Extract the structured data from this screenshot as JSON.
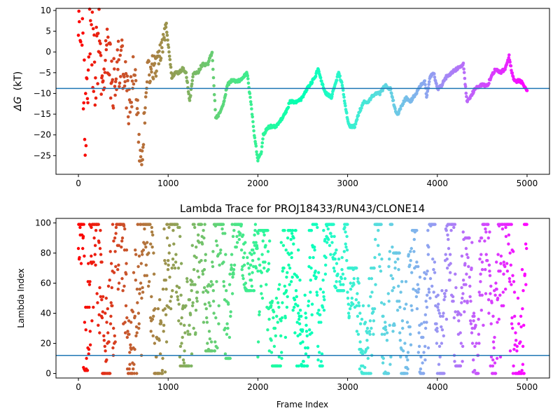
{
  "chart_data": [
    {
      "type": "scatter",
      "title": "",
      "xlabel": "",
      "ylabel": "ΔG (kT)",
      "ylabel_symbol": "ΔG",
      "ylabel_unit": "(kT)",
      "xlim": [
        -250,
        5250
      ],
      "ylim": [
        -29.5,
        10.5
      ],
      "xticks": [
        0,
        1000,
        2000,
        3000,
        4000,
        5000
      ],
      "yticks": [
        10,
        5,
        0,
        -5,
        -10,
        -15,
        -20,
        -25
      ],
      "ytick_labels": [
        "10",
        "5",
        "0",
        "−5",
        "−10",
        "−15",
        "−20",
        "−25"
      ],
      "hline": -8.8,
      "colormap": "rainbow (red at frame 0 → violet at frame 5000)",
      "keypoints": [
        [
          0,
          10
        ],
        [
          40,
          4
        ],
        [
          80,
          -18
        ],
        [
          130,
          8
        ],
        [
          180,
          -6
        ],
        [
          230,
          3
        ],
        [
          280,
          -12
        ],
        [
          330,
          2
        ],
        [
          380,
          -8
        ],
        [
          430,
          -4
        ],
        [
          500,
          -3
        ],
        [
          560,
          -14
        ],
        [
          620,
          -4
        ],
        [
          700,
          -28
        ],
        [
          760,
          -6
        ],
        [
          820,
          -4
        ],
        [
          880,
          -3
        ],
        [
          940,
          2
        ],
        [
          980,
          6
        ],
        [
          1000,
          2
        ],
        [
          1040,
          -6
        ],
        [
          1080,
          -5
        ],
        [
          1120,
          -5
        ],
        [
          1160,
          -4
        ],
        [
          1200,
          -5
        ],
        [
          1240,
          -12
        ],
        [
          1280,
          -5
        ],
        [
          1330,
          -5
        ],
        [
          1380,
          -3
        ],
        [
          1440,
          -3
        ],
        [
          1490,
          0
        ],
        [
          1530,
          -16
        ],
        [
          1570,
          -15
        ],
        [
          1610,
          -13
        ],
        [
          1660,
          -8
        ],
        [
          1700,
          -7
        ],
        [
          1800,
          -7
        ],
        [
          1840,
          -6
        ],
        [
          1880,
          -5
        ],
        [
          1920,
          -12
        ],
        [
          1960,
          -20
        ],
        [
          2000,
          -26
        ],
        [
          2040,
          -24
        ],
        [
          2060,
          -20
        ],
        [
          2120,
          -18
        ],
        [
          2200,
          -18
        ],
        [
          2300,
          -15
        ],
        [
          2360,
          -12
        ],
        [
          2450,
          -12
        ],
        [
          2500,
          -11
        ],
        [
          2540,
          -9
        ],
        [
          2580,
          -8
        ],
        [
          2640,
          -6
        ],
        [
          2670,
          -4
        ],
        [
          2720,
          -8
        ],
        [
          2760,
          -10
        ],
        [
          2820,
          -11
        ],
        [
          2860,
          -8
        ],
        [
          2900,
          -5
        ],
        [
          2940,
          -8
        ],
        [
          2980,
          -14
        ],
        [
          3020,
          -18
        ],
        [
          3080,
          -18
        ],
        [
          3120,
          -15
        ],
        [
          3180,
          -12
        ],
        [
          3230,
          -12
        ],
        [
          3300,
          -10
        ],
        [
          3360,
          -10
        ],
        [
          3420,
          -8
        ],
        [
          3480,
          -9
        ],
        [
          3530,
          -14
        ],
        [
          3560,
          -15
        ],
        [
          3600,
          -13
        ],
        [
          3650,
          -11
        ],
        [
          3700,
          -12
        ],
        [
          3760,
          -10
        ],
        [
          3820,
          -8
        ],
        [
          3860,
          -7
        ],
        [
          3880,
          -11
        ],
        [
          3920,
          -6
        ],
        [
          3960,
          -5
        ],
        [
          4000,
          -9
        ],
        [
          4050,
          -8
        ],
        [
          4100,
          -6
        ],
        [
          4160,
          -5
        ],
        [
          4220,
          -4
        ],
        [
          4290,
          -3
        ],
        [
          4330,
          -12
        ],
        [
          4360,
          -11
        ],
        [
          4420,
          -9
        ],
        [
          4480,
          -8
        ],
        [
          4560,
          -8
        ],
        [
          4600,
          -6
        ],
        [
          4650,
          -4
        ],
        [
          4700,
          -5
        ],
        [
          4760,
          -4
        ],
        [
          4800,
          -1
        ],
        [
          4830,
          -5
        ],
        [
          4860,
          -7
        ],
        [
          4930,
          -7
        ],
        [
          4990,
          -9
        ]
      ]
    },
    {
      "type": "scatter",
      "title": "Lambda Trace for PROJ18433/RUN43/CLONE14",
      "xlabel": "Frame Index",
      "ylabel": "Lambda Index",
      "xlim": [
        -250,
        5250
      ],
      "ylim": [
        -3,
        103
      ],
      "xticks": [
        0,
        1000,
        2000,
        3000,
        4000,
        5000
      ],
      "yticks": [
        0,
        20,
        40,
        60,
        80,
        100
      ],
      "hline": 12,
      "colormap": "rainbow (red at frame 0 → violet at frame 5000)",
      "sweeps": [
        [
          0,
          130,
          2,
          100
        ],
        [
          130,
          400,
          0,
          100
        ],
        [
          400,
          700,
          0,
          100
        ],
        [
          700,
          1000,
          0,
          100
        ],
        [
          1000,
          1300,
          5,
          100
        ],
        [
          1300,
          1560,
          15,
          100
        ],
        [
          1560,
          1720,
          10,
          100
        ],
        [
          1720,
          2000,
          55,
          100
        ],
        [
          2000,
          2300,
          5,
          95
        ],
        [
          2300,
          2600,
          5,
          95
        ],
        [
          2600,
          2750,
          5,
          100
        ],
        [
          2750,
          3000,
          55,
          100
        ],
        [
          3000,
          3300,
          0,
          70
        ],
        [
          3300,
          3500,
          0,
          100
        ],
        [
          3500,
          3700,
          0,
          80
        ],
        [
          3700,
          3900,
          0,
          95
        ],
        [
          3900,
          4100,
          0,
          100
        ],
        [
          4100,
          4300,
          5,
          100
        ],
        [
          4300,
          4500,
          0,
          90
        ],
        [
          4500,
          4700,
          0,
          100
        ],
        [
          4700,
          5000,
          0,
          100
        ]
      ]
    }
  ]
}
